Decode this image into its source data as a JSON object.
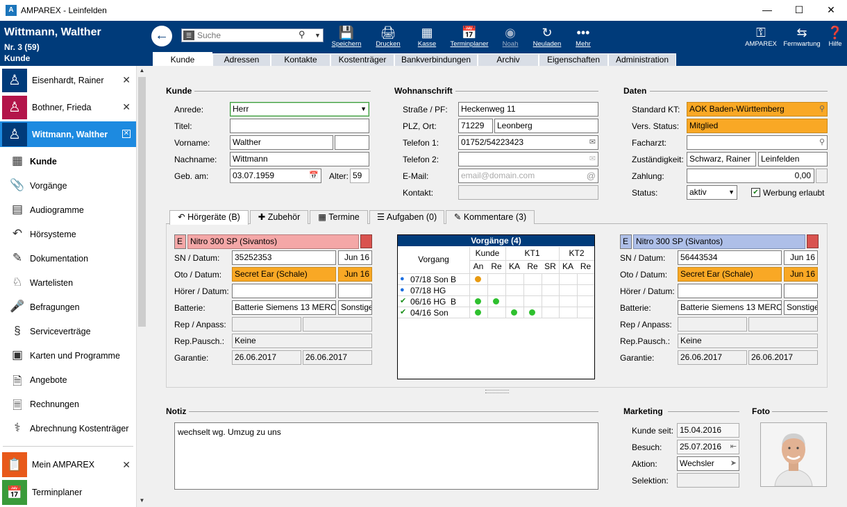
{
  "window": {
    "title": "AMPAREX - Leinfelden",
    "logo": "A",
    "minimize": "—",
    "maximize": "☐",
    "close": "✕"
  },
  "patient": {
    "name": "Wittmann, Walther",
    "number": "Nr. 3 (59)",
    "kind": "Kunde"
  },
  "search": {
    "placeholder": "Suche",
    "value": ""
  },
  "toolbar": [
    {
      "label": "Speichern",
      "icon": "save-icon"
    },
    {
      "label": "Drucken",
      "icon": "printer-icon"
    },
    {
      "label": "Kasse",
      "icon": "cash-register-icon"
    },
    {
      "label": "Terminplaner",
      "icon": "calendar-icon"
    },
    {
      "label": "Noah",
      "icon": "noah-icon"
    },
    {
      "label": "Neuladen",
      "icon": "reload-icon"
    },
    {
      "label": "Mehr",
      "icon": "more-icon"
    }
  ],
  "toolbar_right": [
    {
      "label": "AMPAREX",
      "icon": "key-icon"
    },
    {
      "label": "Fernwartung",
      "icon": "remote-icon"
    },
    {
      "label": "Hilfe",
      "icon": "help-icon"
    }
  ],
  "tabs": [
    "Kunde",
    "Adressen",
    "Kontakte",
    "Kostenträger",
    "Bankverbindungen",
    "Archiv",
    "Eigenschaften",
    "Administration"
  ],
  "recent": [
    {
      "name": "Eisenhardt, Rainer",
      "color": "#003b7a"
    },
    {
      "name": "Bothner, Frieda",
      "color": "#b3154a"
    },
    {
      "name": "Wittmann, Walther",
      "color": "#003b7a"
    }
  ],
  "nav": [
    "Kunde",
    "Vorgänge",
    "Audiogramme",
    "Hörsysteme",
    "Dokumentation",
    "Wartelisten",
    "Befragungen",
    "Serviceverträge",
    "Karten und Programme",
    "Angebote",
    "Rechnungen",
    "Abrechnung Kostenträger"
  ],
  "bottom_nav": [
    {
      "label": "Mein AMPAREX",
      "color": "#e8591a"
    },
    {
      "label": "Terminplaner",
      "color": "#3a9b3a"
    }
  ],
  "kunde": {
    "section": "Kunde",
    "anrede_label": "Anrede:",
    "anrede": "Herr",
    "titel_label": "Titel:",
    "titel": "",
    "vorname_label": "Vorname:",
    "vorname": "Walther",
    "vorname2": "",
    "nachname_label": "Nachname:",
    "nachname": "Wittmann",
    "geb_label": "Geb. am:",
    "geb": "03.07.1959",
    "alter_label": "Alter:",
    "alter": "59"
  },
  "wohn": {
    "section": "Wohnanschrift",
    "strasse_label": "Straße / PF:",
    "strasse": "Heckenweg 11",
    "plz_label": "PLZ, Ort:",
    "plz": "71229",
    "ort": "Leonberg",
    "tel1_label": "Telefon 1:",
    "tel1": "01752/54223423",
    "tel2_label": "Telefon 2:",
    "tel2": "",
    "email_label": "E-Mail:",
    "email_placeholder": "email@domain.com",
    "kontakt_label": "Kontakt:",
    "kontakt": ""
  },
  "daten": {
    "section": "Daten",
    "kt_label": "Standard KT:",
    "kt": "AOK Baden-Württemberg",
    "vers_label": "Vers. Status:",
    "vers": "Mitglied",
    "facharzt_label": "Facharzt:",
    "facharzt": "",
    "zust_label": "Zuständigkeit:",
    "zust1": "Schwarz, Rainer",
    "zust2": "Leinfelden",
    "zahlung_label": "Zahlung:",
    "zahlung": "0,00",
    "status_label": "Status:",
    "status": "aktiv",
    "werbung_label": "Werbung erlaubt"
  },
  "subtabs": [
    "Hörgeräte (B)",
    "Zubehör",
    "Termine",
    "Aufgaben (0)",
    "Kommentare (3)"
  ],
  "left_device": {
    "side": "E",
    "name": "Nitro 300 SP (Sivantos)",
    "sn_label": "SN / Datum:",
    "sn": "35252353",
    "sn_date": "Jun 16",
    "oto_label": "Oto / Datum:",
    "oto": "Secret Ear (Schale)",
    "oto_date": "Jun 16",
    "hoerer_label": "Hörer / Datum:",
    "hoerer": "",
    "hoerer_date": "",
    "batterie_label": "Batterie:",
    "batterie": "Batterie Siemens 13 MERC",
    "batterie2": "Sonstige",
    "rep_label": "Rep / Anpass:",
    "rep1": "",
    "rep2": "",
    "pausch_label": "Rep.Pausch.:",
    "pausch": "Keine",
    "garantie_label": "Garantie:",
    "garantie1": "26.06.2017",
    "garantie2": "26.06.2017"
  },
  "right_device": {
    "side": "E",
    "name": "Nitro 300 SP (Sivantos)",
    "sn_label": "SN / Datum:",
    "sn": "56443534",
    "sn_date": "Jun 16",
    "oto_label": "Oto / Datum:",
    "oto": "Secret Ear (Schale)",
    "oto_date": "Jun 16",
    "hoerer_label": "Hörer / Datum:",
    "hoerer": "",
    "hoerer_date": "",
    "batterie_label": "Batterie:",
    "batterie": "Batterie Siemens 13 MERC",
    "batterie2": "Sonstige",
    "rep_label": "Rep / Anpass:",
    "rep1": "",
    "rep2": "",
    "pausch_label": "Rep.Pausch.:",
    "pausch": "Keine",
    "garantie_label": "Garantie:",
    "garantie1": "26.06.2017",
    "garantie2": "26.06.2017"
  },
  "vorgaenge": {
    "title": "Vorgänge (4)",
    "col_vorgang": "Vorgang",
    "groups": [
      "Kunde",
      "KT1",
      "KT2"
    ],
    "subcols": [
      "An",
      "Re",
      "KA",
      "Re",
      "SR",
      "KA",
      "Re"
    ],
    "rows": [
      {
        "status": "blue-dot",
        "label": "07/18 Son B",
        "dots": [
          "orange",
          "",
          "",
          "",
          "",
          "",
          ""
        ]
      },
      {
        "status": "blue-dot",
        "label": "07/18 HG",
        "dots": [
          "",
          "",
          "",
          "",
          "",
          "",
          ""
        ]
      },
      {
        "status": "green-check",
        "label": "06/16 HG  B",
        "dots": [
          "green",
          "green",
          "",
          "",
          "",
          "",
          ""
        ]
      },
      {
        "status": "green-check",
        "label": "04/16 Son",
        "dots": [
          "green",
          "",
          "green",
          "green",
          "",
          "",
          ""
        ]
      }
    ],
    "colors": {
      "orange": "#e89a10",
      "green": "#2ec02e",
      "blue": "#1d6fe0"
    }
  },
  "notiz": {
    "section": "Notiz",
    "text": "wechselt wg. Umzug zu uns"
  },
  "marketing": {
    "section": "Marketing",
    "seit_label": "Kunde seit:",
    "seit": "15.04.2016",
    "besuch_label": "Besuch:",
    "besuch": "25.07.2016",
    "aktion_label": "Aktion:",
    "aktion": "Wechsler",
    "selektion_label": "Selektion:",
    "selektion": ""
  },
  "foto": {
    "section": "Foto"
  }
}
